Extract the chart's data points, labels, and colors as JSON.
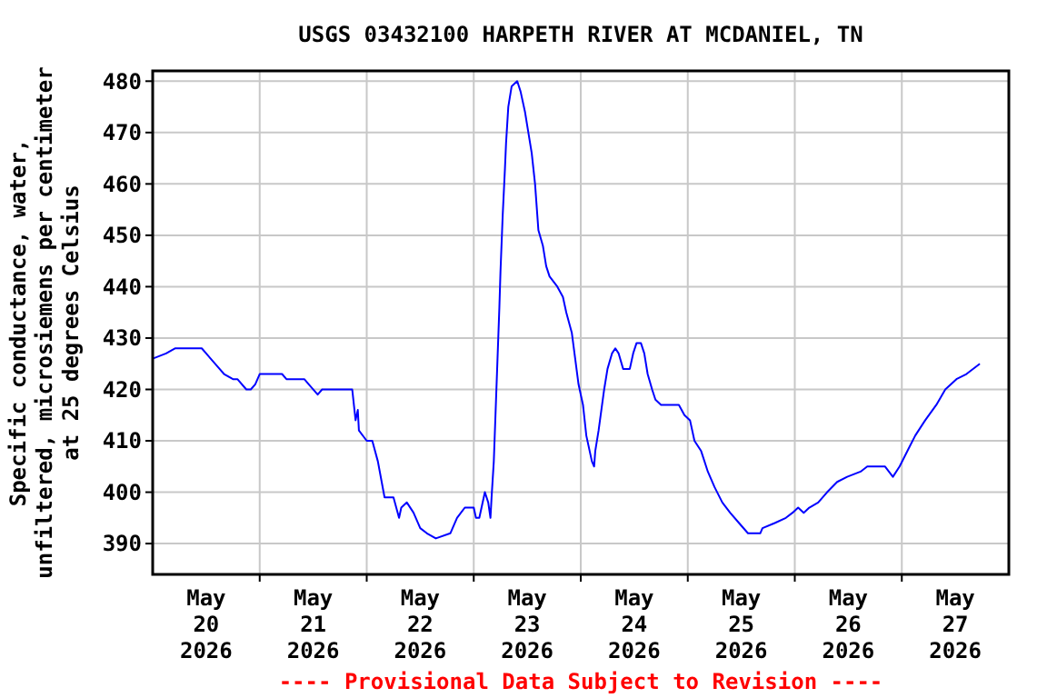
{
  "chart_data": {
    "type": "line",
    "title": "USGS 03432100 HARPETH RIVER AT MCDANIEL, TN",
    "ylabel": "Specific conductance, water,\nunfiltered, microsiemens per centimeter\nat 25 degrees Celsius",
    "annotations": [
      "---- Provisional Data Subject to Revision ----"
    ],
    "xlim": [
      "2026-05-20",
      "2026-05-28"
    ],
    "xticks": [
      {
        "value": "2026-05-20T12:00",
        "label": "May\n20\n2026"
      },
      {
        "value": "2026-05-21",
        "label": null
      },
      {
        "value": "2026-05-21T12:00",
        "label": "May\n21\n2026"
      },
      {
        "value": "2026-05-22",
        "label": null
      },
      {
        "value": "2026-05-22T12:00",
        "label": "May\n22\n2026"
      },
      {
        "value": "2026-05-23",
        "label": null
      },
      {
        "value": "2026-05-23T12:00",
        "label": "May\n23\n2026"
      },
      {
        "value": "2026-05-24",
        "label": null
      },
      {
        "value": "2026-05-24T12:00",
        "label": "May\n24\n2026"
      },
      {
        "value": "2026-05-25",
        "label": null
      },
      {
        "value": "2026-05-25T12:00",
        "label": "May\n25\n2026"
      },
      {
        "value": "2026-05-26",
        "label": null
      },
      {
        "value": "2026-05-26T12:00",
        "label": "May\n26\n2026"
      },
      {
        "value": "2026-05-27",
        "label": null
      },
      {
        "value": "2026-05-27T12:00",
        "label": "May\n27\n2026"
      }
    ],
    "ylim": [
      384,
      482
    ],
    "yticks": [
      390,
      400,
      410,
      420,
      430,
      440,
      450,
      460,
      470,
      480
    ],
    "grid": true,
    "x": [
      "2026-05-20T00:00",
      "2026-05-20T03:00",
      "2026-05-20T05:00",
      "2026-05-20T11:00",
      "2026-05-20T12:00",
      "2026-05-20T13:00",
      "2026-05-20T15:00",
      "2026-05-20T16:00",
      "2026-05-20T18:00",
      "2026-05-20T19:00",
      "2026-05-20T21:00",
      "2026-05-20T22:00",
      "2026-05-20T23:00",
      "2026-05-21T00:00",
      "2026-05-21T05:00",
      "2026-05-21T06:00",
      "2026-05-21T10:00",
      "2026-05-21T11:00",
      "2026-05-21T13:00",
      "2026-05-21T14:00",
      "2026-05-21T20:45",
      "2026-05-21T21:15",
      "2026-05-21T21:30",
      "2026-05-21T22:00",
      "2026-05-21T22:15",
      "2026-05-22T00:00",
      "2026-05-22T01:15",
      "2026-05-22T02:30",
      "2026-05-22T04:00",
      "2026-05-22T06:00",
      "2026-05-22T07:15",
      "2026-05-22T07:45",
      "2026-05-22T09:00",
      "2026-05-22T10:30",
      "2026-05-22T12:00",
      "2026-05-22T13:30",
      "2026-05-22T15:30",
      "2026-05-22T18:45",
      "2026-05-22T20:15",
      "2026-05-22T22:00",
      "2026-05-23T00:00",
      "2026-05-23T00:30",
      "2026-05-23T01:15",
      "2026-05-23T02:30",
      "2026-05-23T03:15",
      "2026-05-23T03:45",
      "2026-05-23T04:00",
      "2026-05-23T04:30",
      "2026-05-23T05:00",
      "2026-05-23T05:15",
      "2026-05-23T05:45",
      "2026-05-23T06:00",
      "2026-05-23T06:30",
      "2026-05-23T07:00",
      "2026-05-23T07:15",
      "2026-05-23T07:45",
      "2026-05-23T08:30",
      "2026-05-23T09:45",
      "2026-05-23T10:30",
      "2026-05-23T11:30",
      "2026-05-23T12:15",
      "2026-05-23T13:00",
      "2026-05-23T13:45",
      "2026-05-23T14:30",
      "2026-05-23T15:30",
      "2026-05-23T16:15",
      "2026-05-23T17:00",
      "2026-05-23T18:45",
      "2026-05-23T20:00",
      "2026-05-23T20:45",
      "2026-05-23T22:00",
      "2026-05-23T22:45",
      "2026-05-23T23:30",
      "2026-05-24T00:30",
      "2026-05-24T01:15",
      "2026-05-24T02:30",
      "2026-05-24T03:00",
      "2026-05-24T03:15",
      "2026-05-24T04:00",
      "2026-05-24T05:15",
      "2026-05-24T06:00",
      "2026-05-24T07:00",
      "2026-05-24T07:45",
      "2026-05-24T08:30",
      "2026-05-24T09:30",
      "2026-05-24T10:15",
      "2026-05-24T11:00",
      "2026-05-24T11:45",
      "2026-05-24T12:30",
      "2026-05-24T13:30",
      "2026-05-24T14:15",
      "2026-05-24T15:00",
      "2026-05-24T16:00",
      "2026-05-24T16:45",
      "2026-05-24T18:00",
      "2026-05-24T22:00",
      "2026-05-24T23:15",
      "2026-05-25T00:30",
      "2026-05-25T01:30",
      "2026-05-25T03:00",
      "2026-05-25T04:30",
      "2026-05-25T06:00",
      "2026-05-25T07:45",
      "2026-05-25T09:30",
      "2026-05-25T11:30",
      "2026-05-25T13:30",
      "2026-05-25T16:15",
      "2026-05-25T16:45",
      "2026-05-25T19:30",
      "2026-05-25T22:00",
      "2026-05-25T23:30",
      "2026-05-26T00:45",
      "2026-05-26T02:00",
      "2026-05-26T03:15",
      "2026-05-26T05:15",
      "2026-05-26T07:15",
      "2026-05-26T09:30",
      "2026-05-26T11:45",
      "2026-05-26T14:45",
      "2026-05-26T16:15",
      "2026-05-26T20:15",
      "2026-05-26T22:00",
      "2026-05-26T23:30",
      "2026-05-27T01:15",
      "2026-05-27T03:00",
      "2026-05-27T05:15",
      "2026-05-27T07:45",
      "2026-05-27T09:45",
      "2026-05-27T12:15",
      "2026-05-27T14:30",
      "2026-05-27T17:30"
    ],
    "series": [
      {
        "color": "#0000ff",
        "values": [
          426,
          427,
          428,
          428,
          427,
          426,
          424,
          423,
          422,
          422,
          420,
          420,
          421,
          423,
          423,
          422,
          422,
          421,
          419,
          420,
          420,
          416,
          414,
          416,
          412,
          410,
          410,
          406,
          399,
          399,
          395,
          397,
          398,
          396,
          393,
          392,
          391,
          392,
          395,
          397,
          397,
          395,
          395,
          400,
          398,
          395,
          399,
          406,
          418,
          424,
          436,
          443,
          454,
          463,
          468,
          475,
          479,
          480,
          478,
          474,
          470,
          466,
          460,
          451,
          448,
          444,
          442,
          440,
          438,
          435,
          431,
          426,
          421,
          417,
          411,
          406,
          405,
          408,
          412,
          420,
          424,
          427,
          428,
          427,
          424,
          424,
          424,
          427,
          429,
          429,
          427,
          423,
          420,
          418,
          417,
          417,
          415,
          414,
          410,
          408,
          404,
          401,
          398,
          396,
          394,
          392,
          392,
          393,
          394,
          395,
          396,
          397,
          396,
          397,
          398,
          400,
          402,
          403,
          404,
          405,
          405,
          403,
          405,
          408,
          411,
          414,
          417,
          420,
          422,
          423,
          425
        ]
      }
    ]
  }
}
